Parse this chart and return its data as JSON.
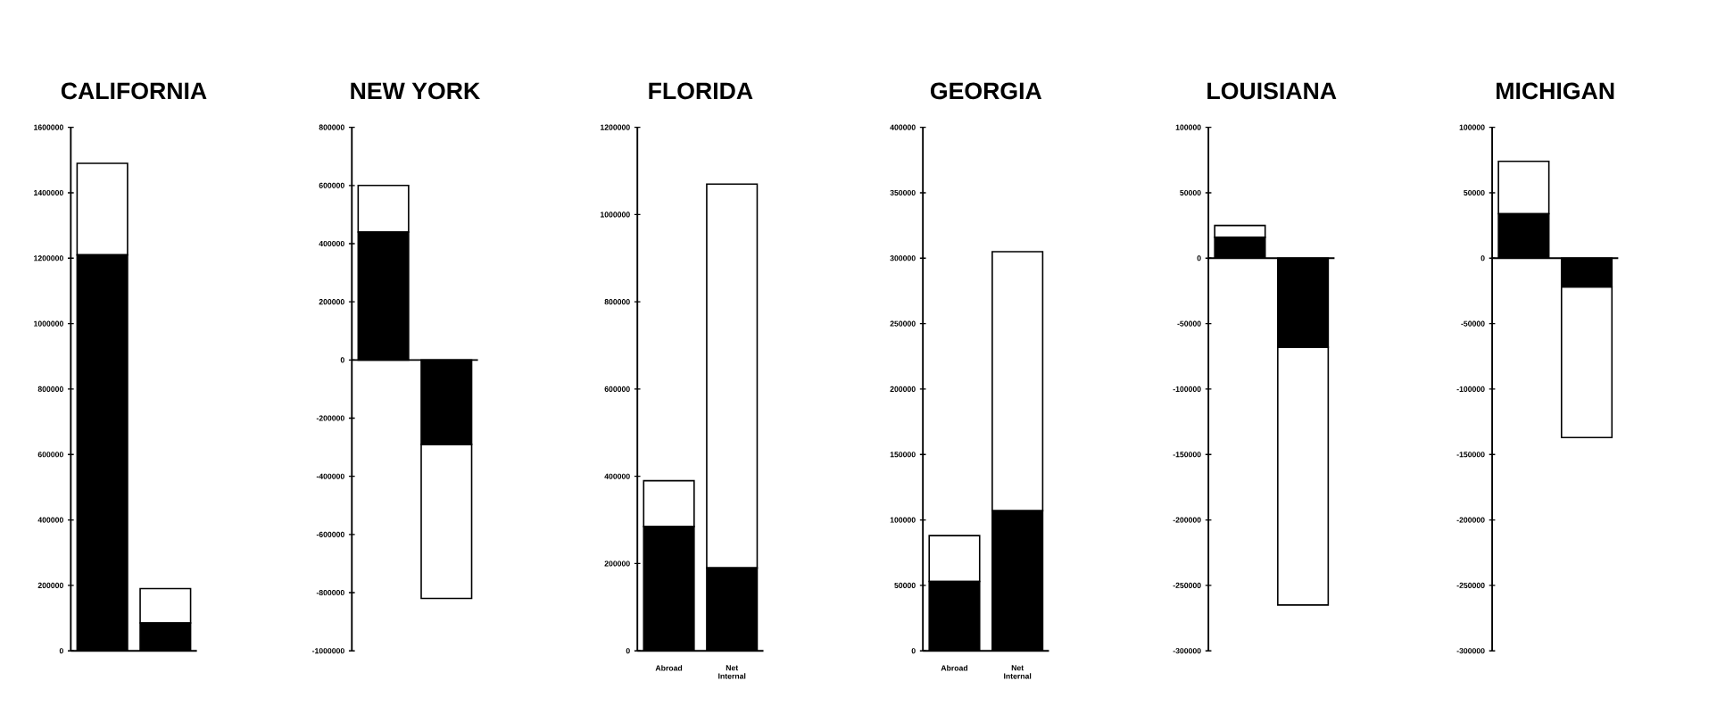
{
  "chart_data": [
    {
      "type": "bar",
      "title": "CALIFORNIA",
      "categories": [
        null,
        null
      ],
      "stacked": true,
      "ylim": [
        0,
        1600000
      ],
      "yticks": [
        0,
        200000,
        400000,
        600000,
        800000,
        1000000,
        1200000,
        1400000,
        1600000
      ],
      "series": [
        {
          "color": "#000000",
          "values": [
            1210000,
            85000
          ]
        },
        {
          "color": "#ffffff",
          "values": [
            280000,
            105000
          ]
        }
      ]
    },
    {
      "type": "bar",
      "title": "NEW  YORK",
      "categories": [
        null,
        null
      ],
      "stacked": true,
      "ylim": [
        -1000000,
        800000
      ],
      "yticks": [
        -1000000,
        -800000,
        -600000,
        -400000,
        -200000,
        0,
        200000,
        400000,
        600000,
        800000
      ],
      "series": [
        {
          "color": "#000000",
          "values": [
            440000,
            -290000
          ]
        },
        {
          "color": "#ffffff",
          "values": [
            160000,
            -530000
          ]
        }
      ]
    },
    {
      "type": "bar",
      "title": "FLORIDA",
      "categories": [
        "Abroad",
        "Net Internal"
      ],
      "stacked": true,
      "ylim": [
        0,
        1200000
      ],
      "yticks": [
        0,
        200000,
        400000,
        600000,
        800000,
        1000000,
        1200000
      ],
      "series": [
        {
          "color": "#000000",
          "values": [
            285000,
            190000
          ]
        },
        {
          "color": "#ffffff",
          "values": [
            105000,
            880000
          ]
        }
      ]
    },
    {
      "type": "bar",
      "title": "GEORGIA",
      "categories": [
        "Abroad",
        "Net Internal"
      ],
      "stacked": true,
      "ylim": [
        0,
        400000
      ],
      "yticks": [
        0,
        50000,
        100000,
        150000,
        200000,
        250000,
        300000,
        350000,
        400000
      ],
      "series": [
        {
          "color": "#000000",
          "values": [
            53000,
            107000
          ]
        },
        {
          "color": "#ffffff",
          "values": [
            35000,
            198000
          ]
        }
      ]
    },
    {
      "type": "bar",
      "title": "LOUISIANA",
      "categories": [
        null,
        null
      ],
      "stacked": true,
      "ylim": [
        -300000,
        100000
      ],
      "yticks": [
        -300000,
        -250000,
        -200000,
        -150000,
        -100000,
        -50000,
        0,
        50000,
        100000
      ],
      "series": [
        {
          "color": "#000000",
          "values": [
            16000,
            -68000
          ]
        },
        {
          "color": "#ffffff",
          "values": [
            9000,
            -197000
          ]
        }
      ]
    },
    {
      "type": "bar",
      "title": "MICHIGAN",
      "categories": [
        null,
        null
      ],
      "stacked": true,
      "ylim": [
        -300000,
        100000
      ],
      "yticks": [
        -300000,
        -250000,
        -200000,
        -150000,
        -100000,
        -50000,
        0,
        50000,
        100000
      ],
      "series": [
        {
          "color": "#000000",
          "values": [
            34000,
            -22000
          ]
        },
        {
          "color": "#ffffff",
          "values": [
            40000,
            -115000
          ]
        }
      ]
    }
  ]
}
